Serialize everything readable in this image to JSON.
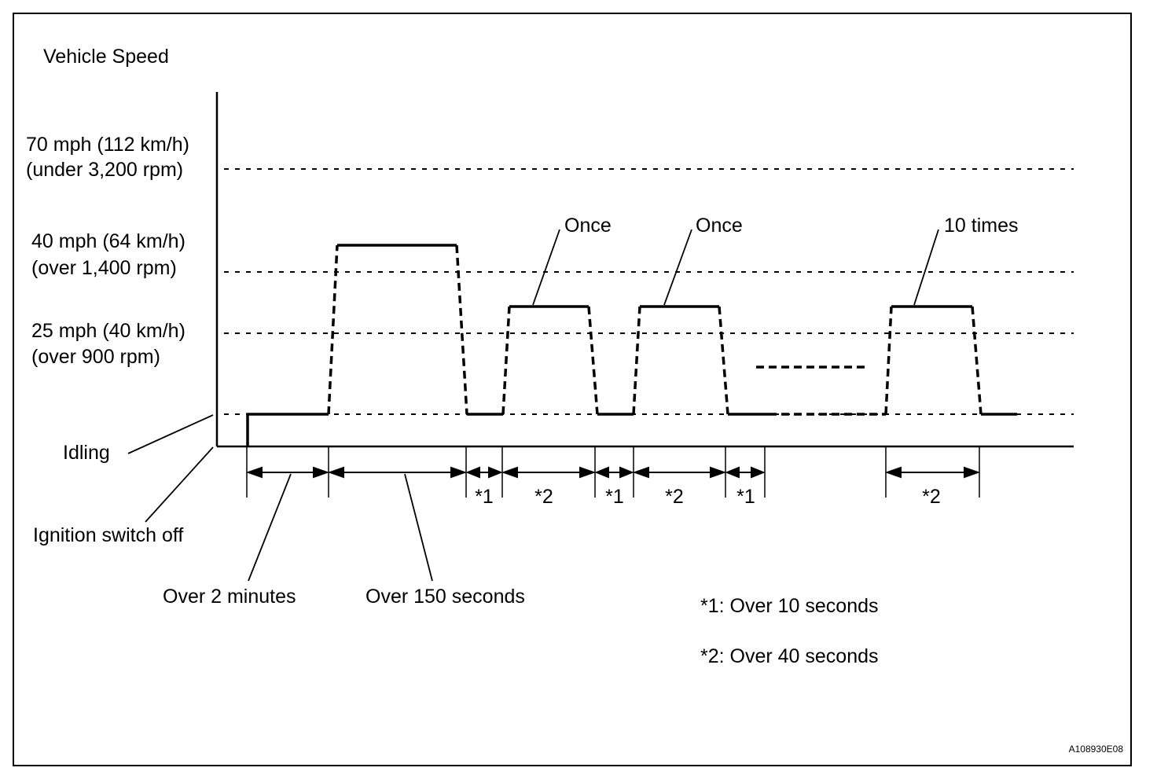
{
  "y_axis_title": "Vehicle Speed",
  "speed_levels": [
    {
      "id": "70",
      "line1": "70 mph (112 km/h)",
      "line2": "(under 3,200 rpm)"
    },
    {
      "id": "40",
      "line1": "40 mph (64 km/h)",
      "line2": "(over 1,400 rpm)"
    },
    {
      "id": "25",
      "line1": "25 mph (40 km/h)",
      "line2": "(over 900 rpm)"
    }
  ],
  "idling_label": "Idling",
  "ignition_off_label": "Ignition switch off",
  "repeat_labels": [
    "Once",
    "Once",
    "10 times"
  ],
  "interval_labels": [
    "*1",
    "*2",
    "*1",
    "*2",
    "*1",
    "*2"
  ],
  "duration_labels": [
    "Over 2 minutes",
    "Over 150 seconds"
  ],
  "notes": [
    "*1: Over 10 seconds",
    "*2: Over 40 seconds"
  ],
  "figure_code": "A108930E08"
}
